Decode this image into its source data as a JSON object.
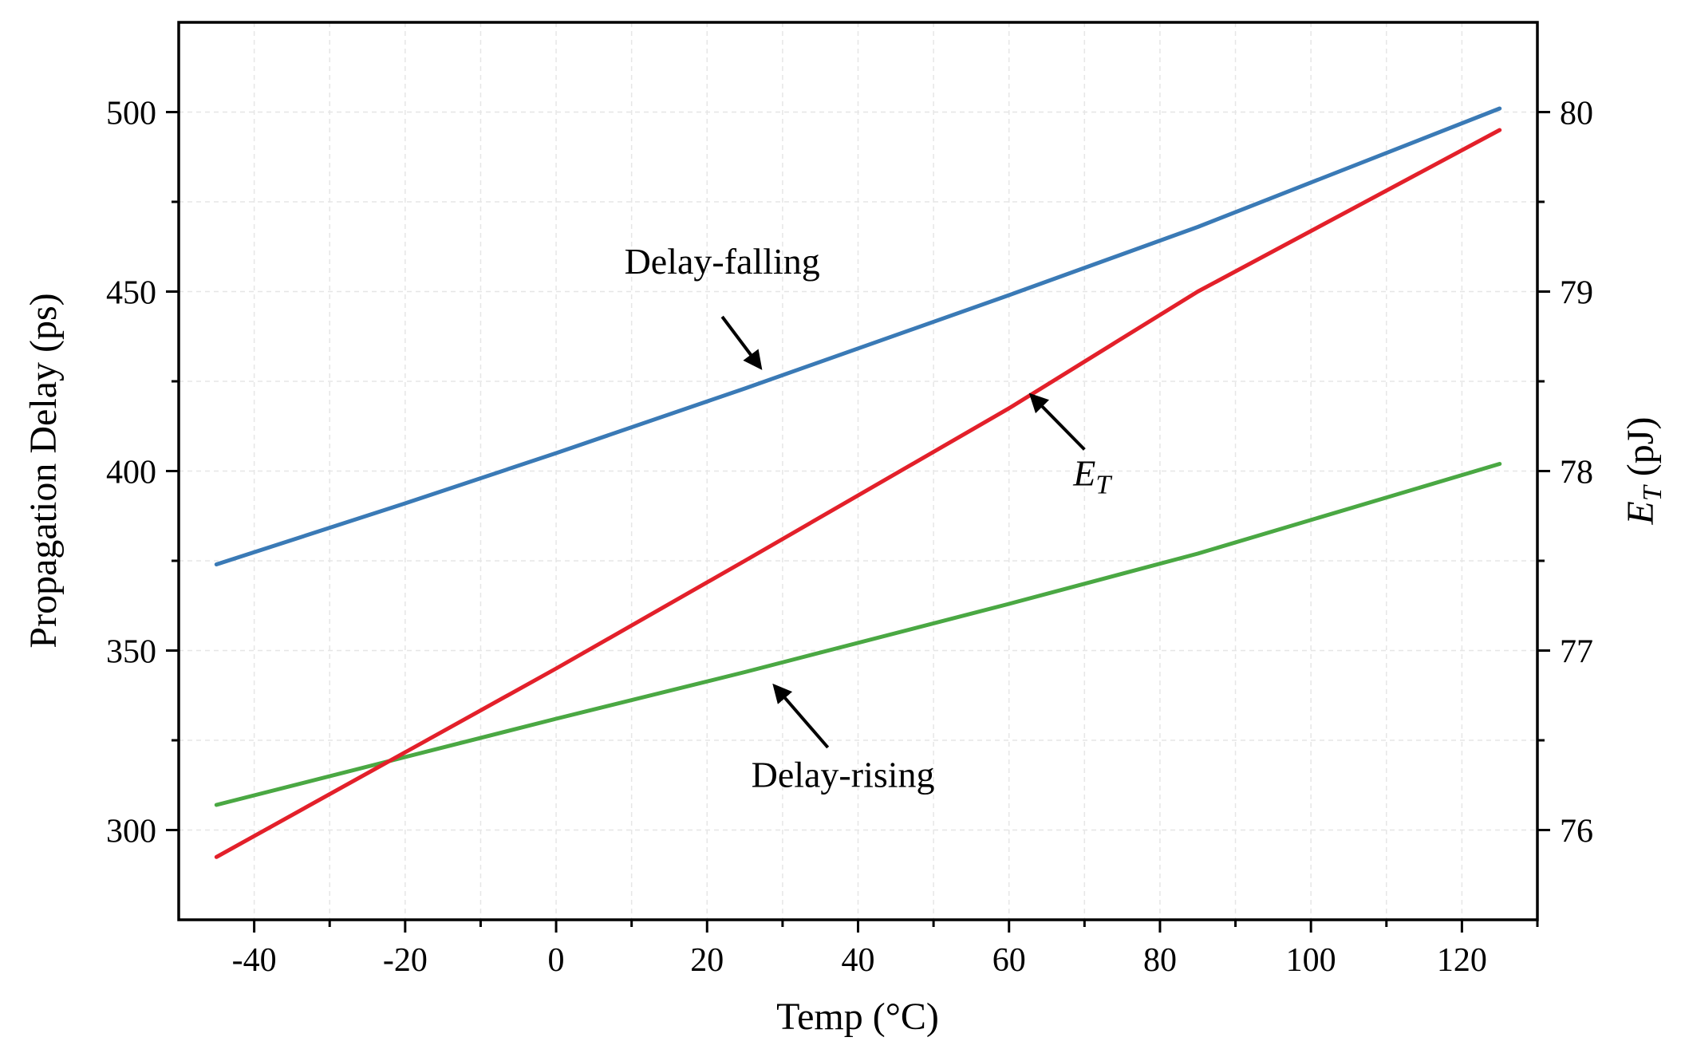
{
  "chart_data": {
    "type": "line",
    "xlabel": "Temp (°C)",
    "ylabel_left": "Propagation Delay (ps)",
    "ylabel_right_main": "E",
    "ylabel_right_sub": "T",
    "ylabel_right_unit": " (pJ)",
    "xlim": [
      -50,
      130
    ],
    "ylim_left": [
      275,
      525
    ],
    "ylim_right": [
      75.5,
      80.5
    ],
    "xticks": [
      -40,
      -20,
      0,
      20,
      40,
      60,
      80,
      100,
      120
    ],
    "yticks_left": [
      300,
      350,
      400,
      450,
      500
    ],
    "yticks_right": [
      76,
      77,
      78,
      79,
      80
    ],
    "grid": true,
    "series": [
      {
        "name": "Delay-falling",
        "axis": "left",
        "color": "#3a7ab6",
        "x": [
          -45,
          -20,
          0,
          25,
          60,
          85,
          125
        ],
        "y": [
          374,
          391,
          405,
          423,
          449,
          468,
          501
        ]
      },
      {
        "name": "Delay-rising",
        "axis": "left",
        "color": "#4aa843",
        "x": [
          -45,
          0,
          25,
          60,
          85,
          125
        ],
        "y": [
          307,
          331,
          344,
          363,
          377,
          402
        ]
      },
      {
        "name": "ET",
        "axis": "right",
        "color": "#e3202a",
        "x": [
          -45,
          0,
          25,
          60,
          85,
          125
        ],
        "y": [
          75.85,
          76.9,
          77.5,
          78.35,
          79.0,
          79.9
        ]
      }
    ],
    "annotations": [
      {
        "label": "Delay-falling",
        "sub": "",
        "text_x": 22,
        "text_y": 455,
        "axis": "left",
        "anchor": "middle",
        "arrow_from": [
          22,
          443
        ],
        "arrow_to": [
          27,
          429
        ]
      },
      {
        "label": "E",
        "sub": "T",
        "text_x": 71,
        "text_y": 396,
        "axis": "left",
        "anchor": "middle",
        "arrow_from": [
          70,
          406
        ],
        "arrow_to": [
          63,
          421
        ]
      },
      {
        "label": "Delay-rising",
        "sub": "",
        "text_x": 38,
        "text_y": 312,
        "axis": "left",
        "anchor": "middle",
        "arrow_from": [
          36,
          323
        ],
        "arrow_to": [
          29,
          340
        ]
      }
    ]
  }
}
